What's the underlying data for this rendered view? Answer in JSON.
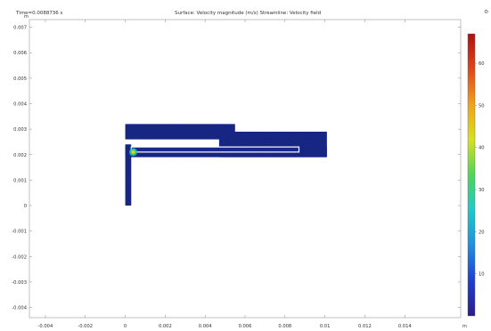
{
  "header": {
    "time_label": "Time=0.0088736 s",
    "plot_title": "Surface: Velocity magnitude (m/s)  Streamline: Velocity field",
    "corner_icon": "gear-icon"
  },
  "chart_data": {
    "type": "heatmap",
    "title": "Surface: Velocity magnitude (m/s)  Streamline: Velocity field",
    "x_unit": "m",
    "y_unit": "m",
    "xlim": [
      -0.0048,
      0.0168
    ],
    "ylim": [
      -0.0044,
      0.0073
    ],
    "x_ticks": [
      -0.004,
      -0.002,
      0,
      0.002,
      0.004,
      0.006,
      0.008,
      0.01,
      0.012,
      0.014
    ],
    "y_ticks": [
      0.007,
      0.006,
      0.005,
      0.004,
      0.003,
      0.002,
      0.001,
      0,
      -0.001,
      -0.002,
      -0.003,
      -0.004
    ],
    "x_tick_labels": [
      "-0.004",
      "-0.002",
      "0",
      "0.002",
      "0.004",
      "0.006",
      "0.008",
      "0.01",
      "0.012",
      "0.014"
    ],
    "y_tick_labels": [
      "0.007",
      "0.006",
      "0.005",
      "0.004",
      "0.003",
      "0.002",
      "0.001",
      "0",
      "-0.001",
      "-0.002",
      "-0.003",
      "-0.004"
    ],
    "colorbar": {
      "min": 0,
      "max": 67,
      "ticks": [
        10,
        20,
        30,
        40,
        50,
        60
      ],
      "tick_labels": [
        "10",
        "20",
        "30",
        "40",
        "50",
        "60"
      ],
      "colormap": [
        "#2b1c8a",
        "#1f3fd1",
        "#1f8fe0",
        "#1fc9c9",
        "#4fd65a",
        "#d7e020",
        "#f0a21a",
        "#e0451a",
        "#b01010"
      ]
    },
    "domain_color": "#1a2a8c",
    "domain_regions": [
      {
        "name": "upper-left-block",
        "x": [
          0,
          0.0055
        ],
        "y": [
          0.0026,
          0.0032
        ]
      },
      {
        "name": "upper-right-channel",
        "x": [
          0.0047,
          0.0101
        ],
        "y": [
          0.0019,
          0.0029
        ]
      },
      {
        "name": "inlet-vertical",
        "x": [
          0,
          0.0003
        ],
        "y": [
          0,
          0.0024
        ]
      },
      {
        "name": "inlet-horizontal",
        "x": [
          0,
          0.0101
        ],
        "y": [
          0.0019,
          0.0023
        ]
      }
    ],
    "obstacle": {
      "x": [
        0.0003,
        0.0087
      ],
      "y": [
        0.0021,
        0.0023
      ]
    },
    "hotspot": {
      "x": 0.0004,
      "y": 0.0021,
      "value": 35
    }
  }
}
